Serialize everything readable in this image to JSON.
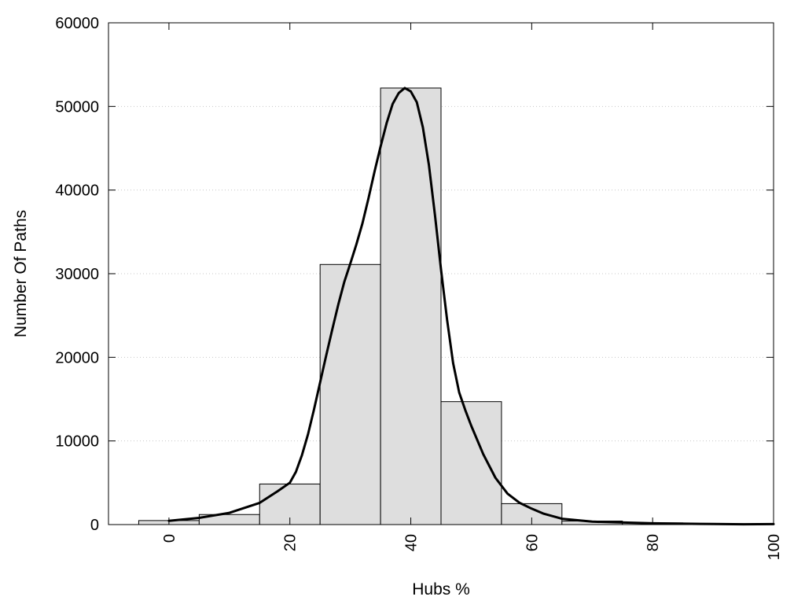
{
  "chart_data": {
    "type": "bar",
    "title": "",
    "xlabel": "Hubs %",
    "ylabel": "Number Of Paths",
    "xlim": [
      -10,
      100
    ],
    "ylim": [
      0,
      60000
    ],
    "x_ticks": [
      0,
      20,
      40,
      60,
      80,
      100
    ],
    "y_ticks": [
      0,
      10000,
      20000,
      30000,
      40000,
      50000,
      60000
    ],
    "grid": "horizontal dotted",
    "legend": "none",
    "bar_width": 10,
    "bars": [
      {
        "x": 0,
        "value": 480
      },
      {
        "x": 10,
        "value": 1200
      },
      {
        "x": 20,
        "value": 4850
      },
      {
        "x": 30,
        "value": 31100
      },
      {
        "x": 40,
        "value": 52200
      },
      {
        "x": 50,
        "value": 14700
      },
      {
        "x": 60,
        "value": 2500
      },
      {
        "x": 70,
        "value": 420
      },
      {
        "x": 80,
        "value": 200
      },
      {
        "x": 90,
        "value": 100
      },
      {
        "x": 100,
        "value": 60
      }
    ],
    "series": [
      {
        "type": "line",
        "points": [
          [
            0,
            450
          ],
          [
            5,
            800
          ],
          [
            10,
            1400
          ],
          [
            15,
            2600
          ],
          [
            18,
            4000
          ],
          [
            20,
            5000
          ],
          [
            21,
            6300
          ],
          [
            22,
            8300
          ],
          [
            23,
            10800
          ],
          [
            24,
            13800
          ],
          [
            25,
            17000
          ],
          [
            26,
            20200
          ],
          [
            27,
            23300
          ],
          [
            28,
            26300
          ],
          [
            29,
            29000
          ],
          [
            30,
            31200
          ],
          [
            31,
            33500
          ],
          [
            32,
            36000
          ],
          [
            33,
            39000
          ],
          [
            34,
            42200
          ],
          [
            35,
            45200
          ],
          [
            36,
            48000
          ],
          [
            37,
            50300
          ],
          [
            38,
            51600
          ],
          [
            39,
            52200
          ],
          [
            40,
            51800
          ],
          [
            41,
            50500
          ],
          [
            42,
            47500
          ],
          [
            43,
            43000
          ],
          [
            44,
            37000
          ],
          [
            45,
            30500
          ],
          [
            46,
            24500
          ],
          [
            47,
            19300
          ],
          [
            48,
            15800
          ],
          [
            49,
            13700
          ],
          [
            50,
            11800
          ],
          [
            52,
            8400
          ],
          [
            54,
            5600
          ],
          [
            56,
            3700
          ],
          [
            58,
            2600
          ],
          [
            60,
            1900
          ],
          [
            62,
            1300
          ],
          [
            65,
            700
          ],
          [
            70,
            350
          ],
          [
            80,
            150
          ],
          [
            90,
            70
          ],
          [
            95,
            40
          ],
          [
            100,
            60
          ]
        ]
      }
    ],
    "colors": {
      "bar_fill": "#dedede",
      "bar_stroke": "#000000",
      "line": "#000000",
      "grid": "#c8c8c8"
    }
  }
}
